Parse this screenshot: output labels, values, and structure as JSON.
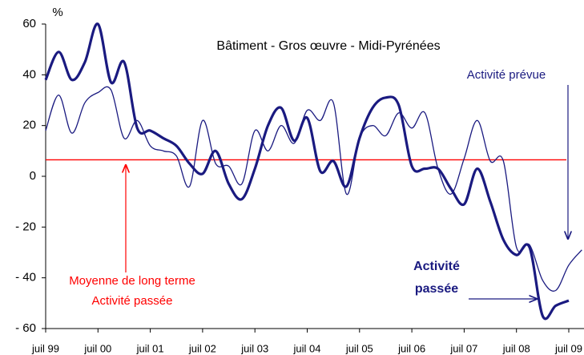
{
  "chart_data": {
    "type": "line",
    "title": "Bâtiment - Gros œuvre  - Midi-Pyrénées",
    "y_unit_label": "%",
    "categories": [
      "juil 99",
      null,
      null,
      null,
      "juil 00",
      null,
      null,
      null,
      "juil 01",
      null,
      null,
      null,
      "juil 02",
      null,
      null,
      null,
      "juil 03",
      null,
      null,
      null,
      "juil 04",
      null,
      null,
      null,
      "juil 05",
      null,
      null,
      null,
      "juil 06",
      null,
      null,
      null,
      "juil 07",
      null,
      null,
      null,
      "juil 08",
      null,
      null,
      null,
      "juil 09",
      null
    ],
    "series": [
      {
        "name": "Activité passée",
        "color": "#1a1a80",
        "width": 3.2,
        "values": [
          38,
          49,
          38,
          45,
          60,
          37,
          45,
          19,
          18,
          15,
          12,
          5,
          1,
          10,
          -3,
          -9,
          3,
          20,
          27,
          14,
          23,
          2,
          6,
          -4,
          15,
          27,
          31,
          28,
          4,
          3,
          3,
          -5,
          -11,
          3,
          -10,
          -25,
          -31,
          -28,
          -55,
          -51,
          -49,
          null
        ]
      },
      {
        "name": "Activité prévue",
        "color": "#1a1a80",
        "width": 1.3,
        "values": [
          18,
          32,
          17,
          29,
          33,
          34,
          15,
          22,
          12,
          10,
          8,
          -4,
          22,
          5,
          4,
          -3,
          18,
          10,
          20,
          13,
          26,
          22,
          29,
          -7,
          15,
          20,
          16,
          25,
          19,
          25,
          3,
          -7,
          7,
          22,
          6,
          6,
          -28,
          -27,
          -41,
          -45,
          -35,
          -29
        ]
      }
    ],
    "reference_line": {
      "value": 6.5,
      "color": "#ff0000",
      "labels": [
        "Moyenne de long terme",
        "Activité passée"
      ]
    },
    "annotations": [
      {
        "lines": [
          "Activité",
          "passée"
        ]
      },
      {
        "lines": [
          "Activité prévue"
        ]
      }
    ],
    "ylim": [
      -60,
      60
    ],
    "yticks": [
      60,
      40,
      20,
      0,
      {
        "value": -20,
        "label": "- 20"
      },
      {
        "value": -40,
        "label": "- 40"
      },
      {
        "value": -60,
        "label": "- 60"
      }
    ]
  }
}
